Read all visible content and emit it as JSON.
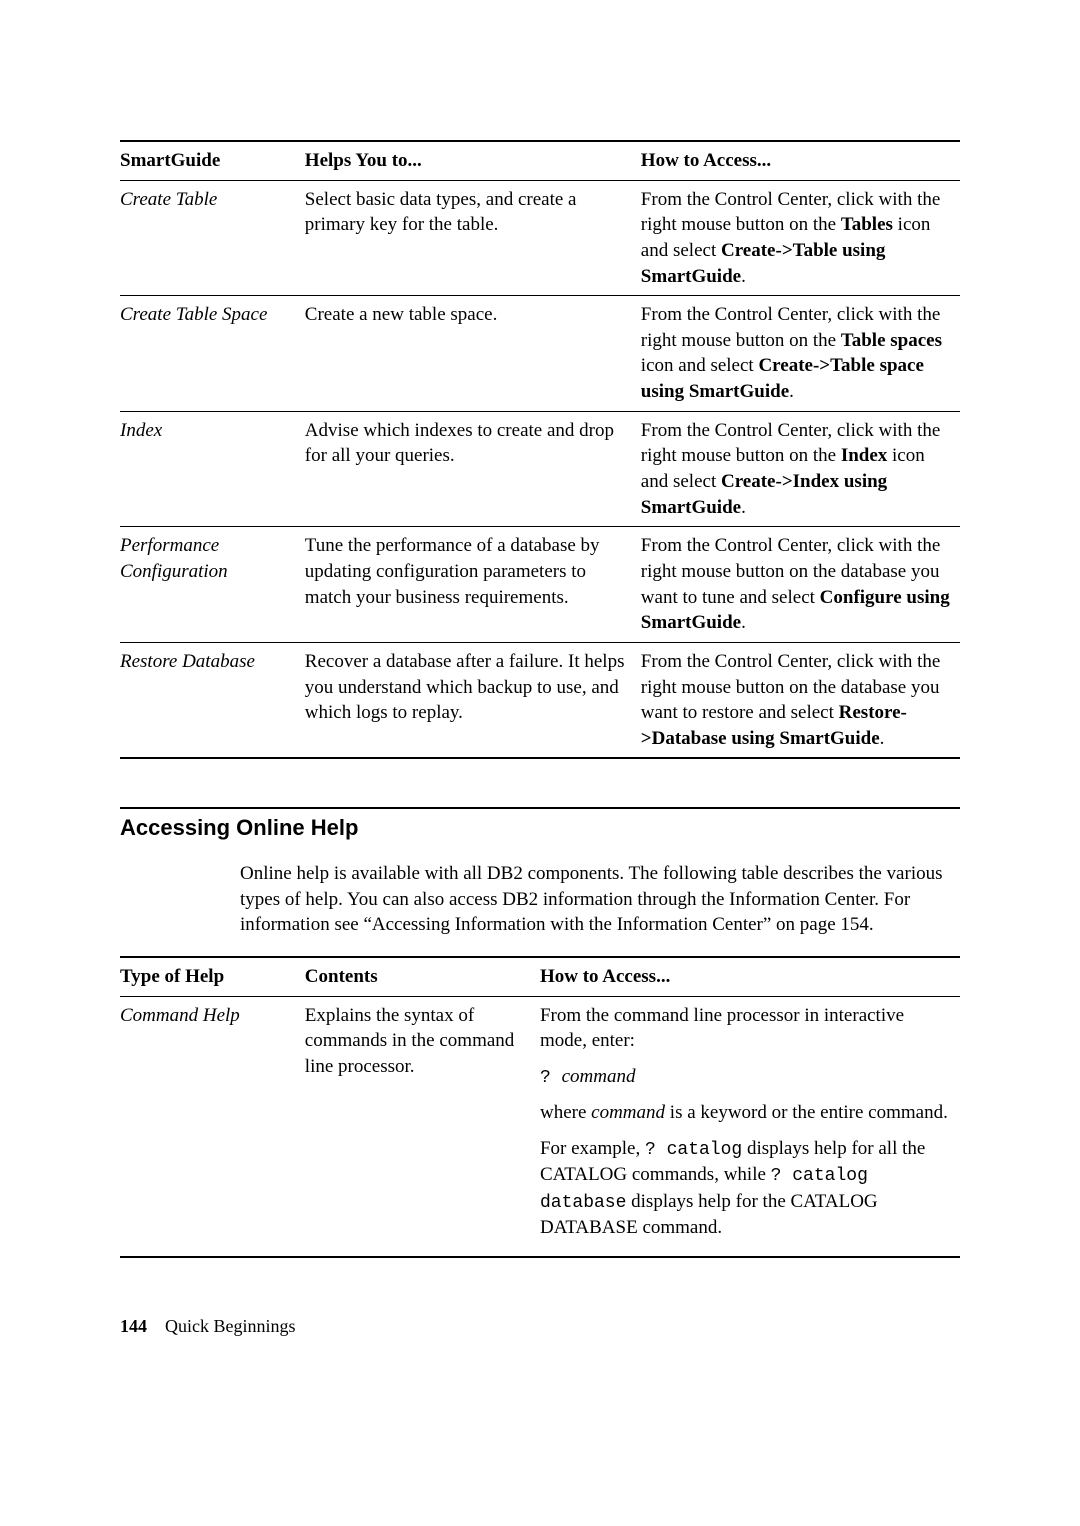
{
  "smartguide_table": {
    "headers": [
      "SmartGuide",
      "Helps You to...",
      "How to Access..."
    ],
    "rows": [
      {
        "name": "Create Table",
        "helps": "Select basic data types, and create a primary key for the table.",
        "access_pre": "From the Control Center, click with the right mouse button on the ",
        "access_b1": "Tables",
        "access_mid": " icon and select ",
        "access_b2": "Create->Table using SmartGuide",
        "access_post": "."
      },
      {
        "name": "Create Table Space",
        "helps": "Create a new table space.",
        "access_pre": "From the Control Center, click with the right mouse button on the ",
        "access_b1": "Table spaces",
        "access_mid": " icon and select ",
        "access_b2": "Create->Table space using SmartGuide",
        "access_post": "."
      },
      {
        "name": "Index",
        "helps": "Advise which indexes to create and drop for all your queries.",
        "access_pre": "From the Control Center, click with the right mouse button on the ",
        "access_b1": "Index",
        "access_mid": " icon and select ",
        "access_b2": "Create->Index using SmartGuide",
        "access_post": "."
      },
      {
        "name": "Performance Configuration",
        "helps": "Tune the performance of a database by updating configuration parameters to match your business requirements.",
        "access_pre": "From the Control Center, click with the right mouse button on the database you want to tune and select ",
        "access_b1": "Configure using SmartGuide",
        "access_mid": "",
        "access_b2": "",
        "access_post": "."
      },
      {
        "name": "Restore Database",
        "helps": "Recover a database after a failure. It helps you understand which backup to use, and which logs to replay.",
        "access_pre": "From the Control Center, click with the right mouse button on the database you want to restore and select ",
        "access_b1": "Restore->Database using SmartGuide",
        "access_mid": "",
        "access_b2": "",
        "access_post": "."
      }
    ]
  },
  "section": {
    "title": "Accessing Online Help",
    "intro": "Online help is available with all DB2 components. The following table describes the various types of help. You can also access DB2 information through the Information Center. For information see “Accessing Information with the Information Center” on page 154."
  },
  "help_table": {
    "headers": [
      "Type of Help",
      "Contents",
      "How to Access..."
    ],
    "row": {
      "type": "Command Help",
      "contents": "Explains the syntax of commands in the command line processor.",
      "p1": "From the command line processor in interactive mode, enter:",
      "cmd1_a": "? ",
      "cmd1_b": "command",
      "p2_a": "where ",
      "p2_b": "command",
      "p2_c": " is a keyword or the entire command.",
      "p3_a": "For example, ",
      "p3_b": "? catalog",
      "p3_c": " displays help for all the CATALOG commands, while ",
      "p3_d": "? catalog database",
      "p3_e": " displays help for the CATALOG DATABASE command."
    }
  },
  "footer": {
    "page": "144",
    "title": "Quick Beginnings"
  }
}
